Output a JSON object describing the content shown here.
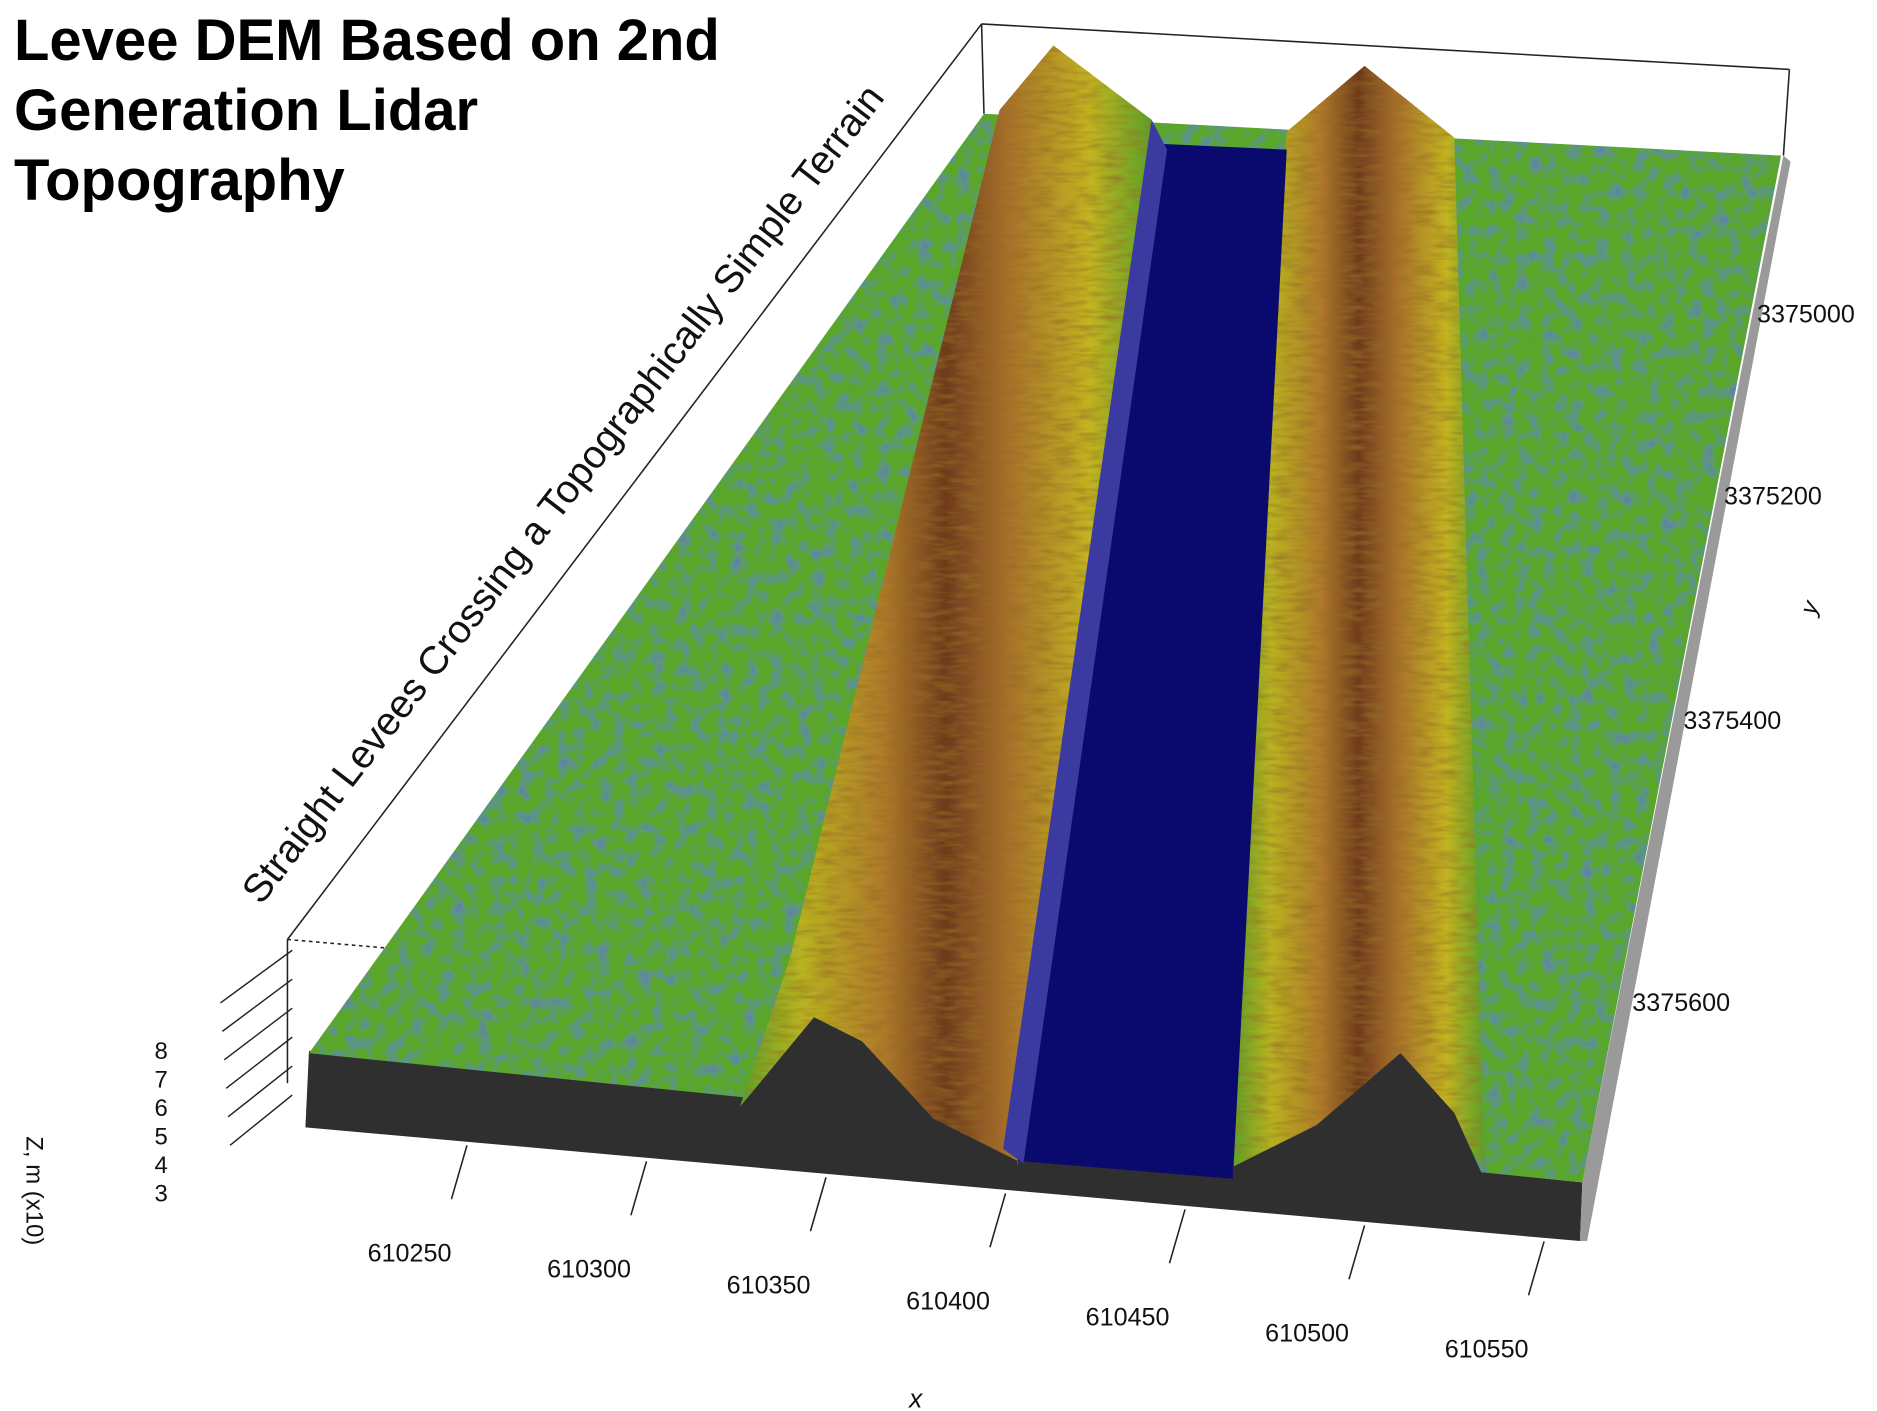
{
  "chart_data": {
    "type": "surface3d",
    "title": "Levee DEM Based on 2nd Generation Lidar Topography",
    "annotation": "Straight Levees Crossing a Topographically Simple Terrain",
    "x_label": "x",
    "y_label": "y",
    "z_label": "Z, m (x10)",
    "xlim": [
      610205,
      610560
    ],
    "xticks": [
      610250,
      610300,
      610350,
      610400,
      610450,
      610500,
      610550
    ],
    "ylim": [
      3374798,
      3375735
    ],
    "yticks": [
      3375000,
      3375200,
      3375400,
      3375600
    ],
    "zlim": [
      3,
      8
    ],
    "zticks": [
      3,
      4,
      5,
      6,
      7,
      8
    ]
  }
}
